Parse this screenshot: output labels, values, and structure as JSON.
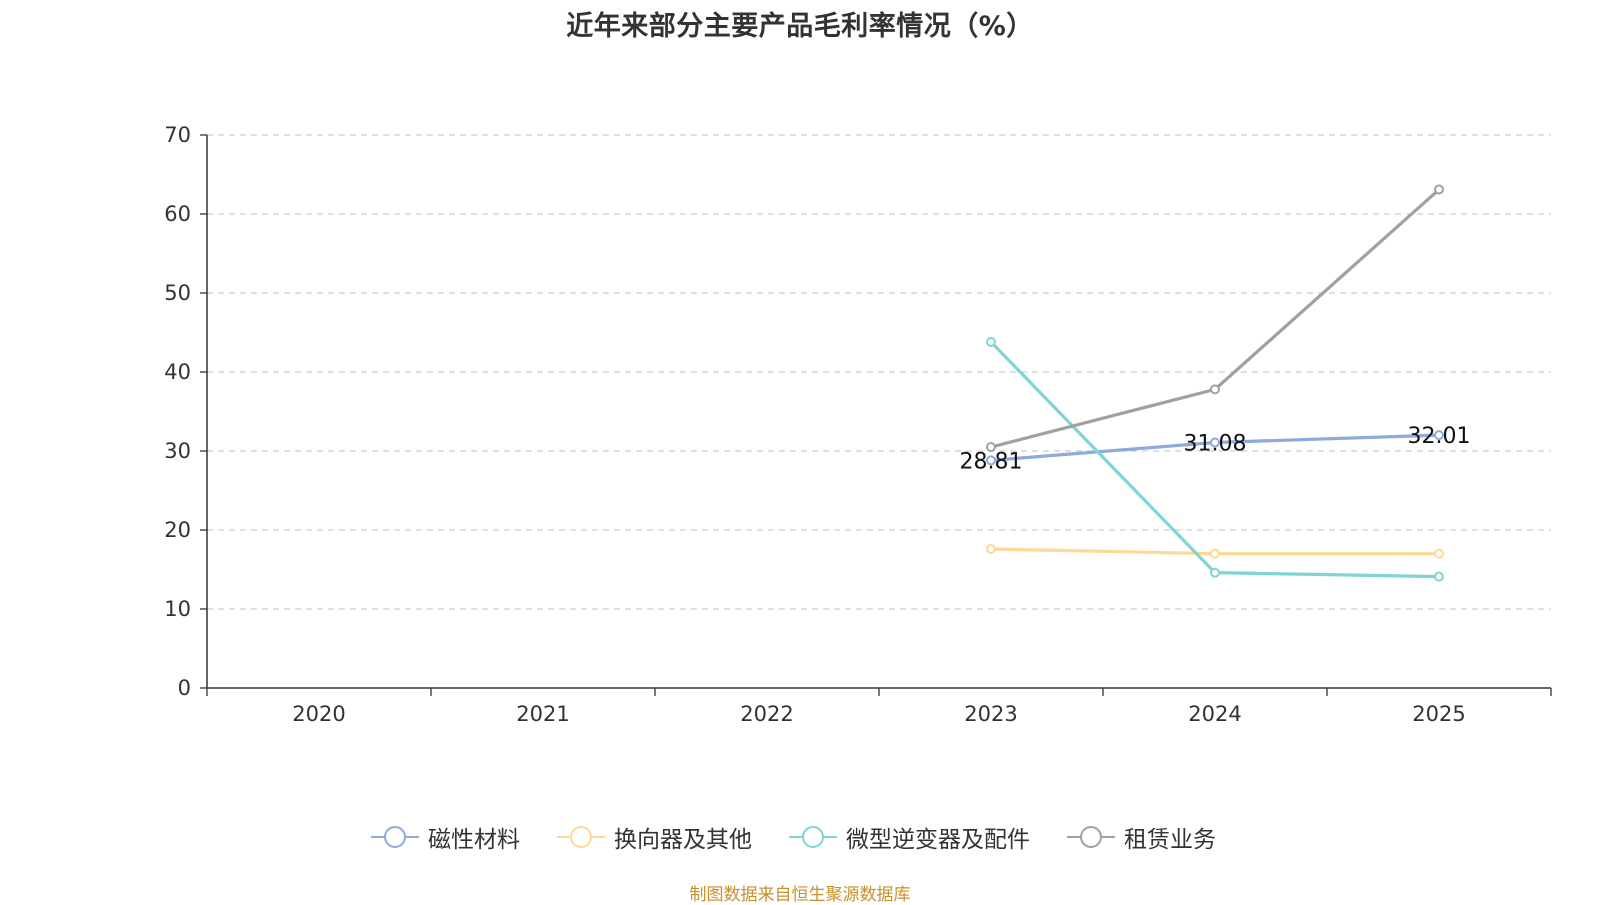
{
  "chart_data": {
    "type": "line",
    "title": "近年来部分主要产品毛利率情况（%）",
    "categories": [
      "2020",
      "2021",
      "2022",
      "2023",
      "2024",
      "2025"
    ],
    "ylim": [
      0,
      70
    ],
    "yticks": [
      0,
      10,
      20,
      30,
      40,
      50,
      60,
      70
    ],
    "grid": true,
    "legend_position": "bottom",
    "series": [
      {
        "name": "磁性材料",
        "color": "#8eaadb",
        "values": [
          null,
          null,
          null,
          28.81,
          31.08,
          32.01
        ],
        "labels": [
          "",
          "",
          "",
          "28.81",
          "31.08",
          "32.01"
        ]
      },
      {
        "name": "换向器及其他",
        "color": "#fdd993",
        "values": [
          null,
          null,
          null,
          17.6,
          17.0,
          17.0
        ],
        "labels": [
          "",
          "",
          "",
          "",
          "",
          ""
        ]
      },
      {
        "name": "微型逆变器及配件",
        "color": "#7fd4d4",
        "values": [
          null,
          null,
          null,
          43.8,
          14.6,
          14.1
        ],
        "labels": [
          "",
          "",
          "",
          "",
          "",
          ""
        ]
      },
      {
        "name": "租赁业务",
        "color": "#a0a0a0",
        "values": [
          null,
          null,
          null,
          30.5,
          37.8,
          63.1
        ],
        "labels": [
          "",
          "",
          "",
          "",
          "",
          ""
        ]
      }
    ]
  },
  "source": "制图数据来自恒生聚源数据库"
}
